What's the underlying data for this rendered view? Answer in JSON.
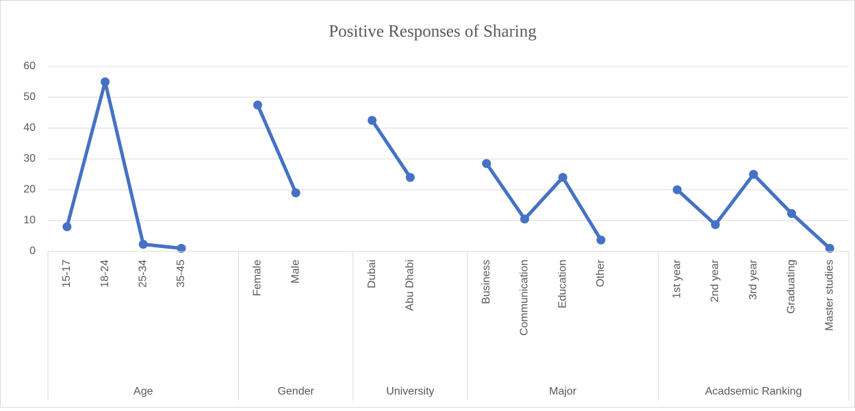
{
  "chart_data": {
    "type": "line",
    "title": "Positive Responses of Sharing",
    "color": "#4472c4",
    "grid": true,
    "ylim": [
      0,
      60
    ],
    "yticks": [
      0,
      10,
      20,
      30,
      40,
      50,
      60
    ],
    "groups": [
      {
        "name": "Age",
        "categories": [
          "15-17",
          "18-24",
          "25-34",
          "35-45",
          null
        ],
        "values": [
          8,
          55,
          2.3,
          1,
          null
        ]
      },
      {
        "name": "Gender",
        "categories": [
          "Female",
          "Male",
          null
        ],
        "values": [
          47.5,
          19,
          null
        ]
      },
      {
        "name": "University",
        "categories": [
          "Dubai",
          "Abu Dhabi",
          null
        ],
        "values": [
          42.5,
          24,
          null
        ]
      },
      {
        "name": "Major",
        "categories": [
          "Business",
          "Communication",
          "Education",
          "Other",
          null
        ],
        "values": [
          28.5,
          10.5,
          24,
          3.7,
          null
        ]
      },
      {
        "name": "Acadsemic Ranking",
        "categories": [
          "1st year",
          "2nd year",
          "3rd year",
          "Graduating",
          "Master studies"
        ],
        "values": [
          20,
          8.7,
          25,
          12.3,
          1
        ]
      }
    ]
  }
}
